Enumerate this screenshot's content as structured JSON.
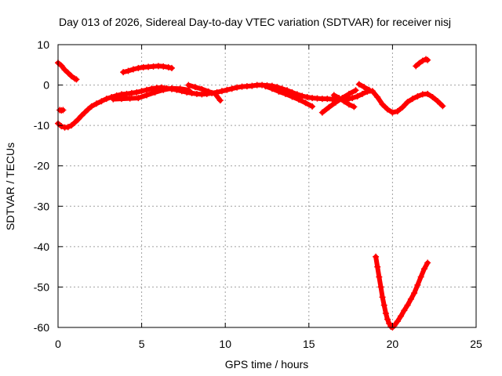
{
  "chart_data": {
    "type": "scatter",
    "title": "Day 013 of 2026, Sidereal Day-to-day VTEC variation (SDTVAR) for receiver nisj",
    "xlabel": "GPS time / hours",
    "ylabel": "SDTVAR / TECUs",
    "xlim": [
      0,
      25
    ],
    "ylim": [
      -60,
      10
    ],
    "xticks": [
      0,
      5,
      10,
      15,
      20,
      25
    ],
    "yticks": [
      10,
      0,
      -10,
      -20,
      -30,
      -40,
      -50,
      -60
    ],
    "xtick_labels": [
      "0",
      "5",
      "10",
      "15",
      "20",
      "25"
    ],
    "ytick_labels": [
      "10",
      "0",
      "-10",
      "-20",
      "-30",
      "-40",
      "-50",
      "-60"
    ],
    "grid": true,
    "marker": "+",
    "series_color": "#ff0000",
    "series": [
      {
        "x": [
          0.0,
          0.2,
          0.4,
          0.6,
          0.8,
          1.0,
          1.1
        ],
        "y": [
          5.5,
          4.8,
          3.8,
          3.0,
          2.2,
          1.6,
          1.4
        ]
      },
      {
        "x": [
          0.1,
          0.2,
          0.3
        ],
        "y": [
          -6.2,
          -6.3,
          -6.2
        ]
      },
      {
        "x": [
          0.0,
          0.2,
          0.4,
          0.6,
          0.8,
          1.0,
          1.2,
          1.4,
          1.6,
          1.8,
          2.0,
          2.3,
          2.6,
          2.9,
          3.2,
          3.5,
          3.8,
          4.1,
          4.4,
          4.7,
          5.0,
          5.3,
          5.6,
          5.9,
          6.2,
          6.5,
          6.8,
          7.1,
          7.4,
          7.7,
          8.0,
          8.3,
          8.6,
          8.9,
          9.2,
          9.5,
          9.8,
          10.1,
          10.4,
          10.7,
          11.0,
          11.3,
          11.6,
          11.9,
          12.2,
          12.5,
          12.8,
          13.1,
          13.4,
          13.7,
          14.0,
          14.3,
          14.6,
          14.9,
          15.2,
          15.5,
          15.8,
          16.1,
          16.4,
          16.7,
          17.0,
          17.3,
          17.6,
          17.9,
          18.2,
          18.5,
          18.8,
          19.1,
          19.4,
          19.7,
          20.0,
          20.3,
          20.6,
          20.9,
          21.2,
          21.5,
          21.8,
          22.1,
          22.4,
          22.7,
          23.0
        ],
        "y": [
          -9.5,
          -10.2,
          -10.5,
          -10.4,
          -10.0,
          -9.3,
          -8.5,
          -7.6,
          -6.8,
          -6.0,
          -5.3,
          -4.6,
          -4.0,
          -3.4,
          -3.0,
          -2.6,
          -2.3,
          -2.2,
          -2.0,
          -1.8,
          -1.5,
          -1.2,
          -0.9,
          -0.7,
          -0.6,
          -0.8,
          -1.0,
          -1.2,
          -1.5,
          -1.8,
          -2.0,
          -2.2,
          -2.3,
          -2.2,
          -2.0,
          -1.8,
          -1.5,
          -1.2,
          -0.9,
          -0.6,
          -0.4,
          -0.3,
          -0.2,
          0.0,
          0.0,
          -0.1,
          -0.2,
          -0.5,
          -0.9,
          -1.3,
          -1.8,
          -2.3,
          -2.7,
          -3.0,
          -3.2,
          -3.3,
          -3.4,
          -3.4,
          -3.5,
          -3.5,
          -3.6,
          -3.5,
          -3.2,
          -2.8,
          -2.2,
          -1.6,
          -1.5,
          -3.0,
          -4.8,
          -6.0,
          -6.8,
          -6.5,
          -5.5,
          -4.2,
          -3.4,
          -2.8,
          -2.3,
          -2.2,
          -3.0,
          -4.0,
          -5.2
        ]
      },
      {
        "x": [
          3.9,
          4.2,
          4.5,
          4.8,
          5.1,
          5.4,
          5.7,
          6.0,
          6.3,
          6.6,
          6.8
        ],
        "y": [
          3.2,
          3.5,
          3.9,
          4.2,
          4.4,
          4.5,
          4.6,
          4.7,
          4.6,
          4.4,
          4.2
        ]
      },
      {
        "x": [
          3.3,
          3.8,
          4.3,
          4.8,
          5.3,
          5.8,
          6.3,
          6.8,
          7.3,
          7.8
        ],
        "y": [
          -3.5,
          -3.4,
          -3.3,
          -3.2,
          -2.5,
          -1.8,
          -1.2,
          -0.8,
          -0.9,
          -1.2
        ]
      },
      {
        "x": [
          7.8,
          8.2,
          8.6,
          9.0,
          9.4,
          9.7
        ],
        "y": [
          0.0,
          -0.5,
          -1.0,
          -1.6,
          -2.2,
          -3.8
        ]
      },
      {
        "x": [
          12.4,
          12.8,
          13.2,
          13.6,
          14.0,
          14.4,
          14.8,
          15.2
        ],
        "y": [
          -0.3,
          -0.9,
          -1.6,
          -2.2,
          -2.9,
          -3.6,
          -4.4,
          -5.3
        ]
      },
      {
        "x": [
          15.8,
          16.2,
          16.6,
          17.0,
          17.4,
          17.8
        ],
        "y": [
          -6.8,
          -5.5,
          -4.3,
          -3.2,
          -2.2,
          -1.3
        ]
      },
      {
        "x": [
          16.5,
          16.8,
          17.1,
          17.4,
          17.7
        ],
        "y": [
          -2.5,
          -3.2,
          -4.0,
          -4.8,
          -5.4
        ]
      },
      {
        "x": [
          18.0,
          18.3,
          18.6
        ],
        "y": [
          0.2,
          -0.5,
          -1.2
        ]
      },
      {
        "x": [
          21.4,
          21.6,
          21.8,
          22.0,
          22.1
        ],
        "y": [
          4.7,
          5.4,
          6.0,
          6.4,
          6.2
        ]
      },
      {
        "x": [
          19.0,
          19.1,
          19.2,
          19.3,
          19.4,
          19.5,
          19.6,
          19.7,
          19.8,
          19.9,
          20.0,
          20.1,
          20.3,
          20.5,
          20.7,
          20.9,
          21.1,
          21.3,
          21.5,
          21.7,
          21.9,
          22.1
        ],
        "y": [
          -42.5,
          -45.0,
          -47.5,
          -50.0,
          -52.5,
          -54.5,
          -56.5,
          -58.0,
          -59.0,
          -59.8,
          -60.0,
          -59.6,
          -58.5,
          -57.2,
          -55.8,
          -54.5,
          -53.0,
          -51.5,
          -49.5,
          -47.5,
          -45.5,
          -44.0
        ]
      }
    ]
  }
}
